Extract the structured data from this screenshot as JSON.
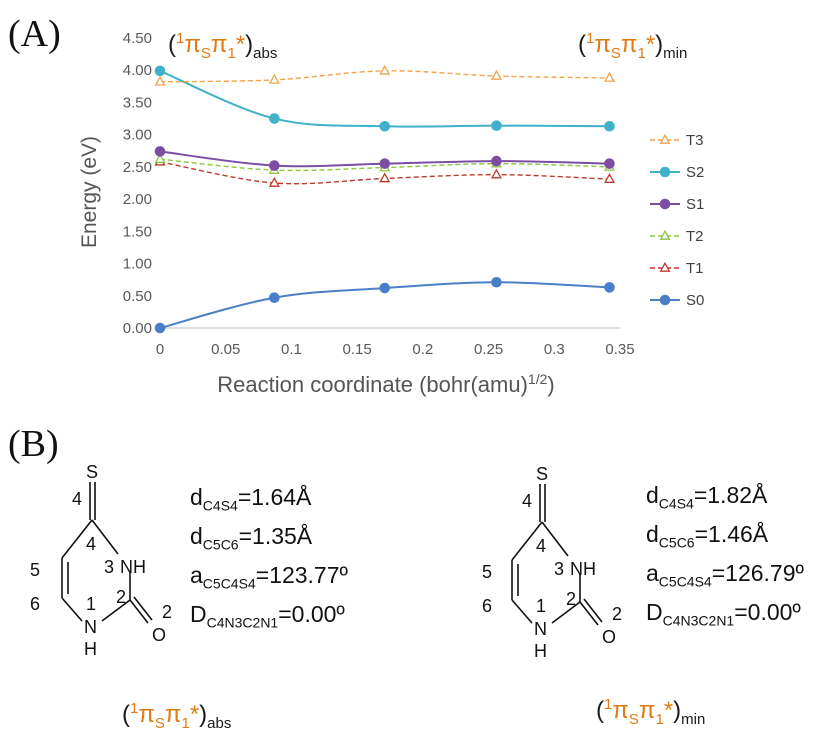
{
  "panel_a_label": "(A)",
  "panel_b_label": "(B)",
  "chart_data": {
    "type": "line",
    "title": "",
    "xlabel": "Reaction coordinate (bohr(amu)",
    "xlabel_sup": "1/2",
    "xlabel_tail": ")",
    "ylabel": "Energy (eV)",
    "xlim": [
      0,
      0.35
    ],
    "ylim": [
      0,
      4.5
    ],
    "x_ticks": [
      "0",
      "0.05",
      "0.1",
      "0.15",
      "0.2",
      "0.25",
      "0.3",
      "0.35"
    ],
    "y_ticks": [
      "0.00",
      "0.50",
      "1.00",
      "1.50",
      "2.00",
      "2.50",
      "3.00",
      "3.50",
      "4.00",
      "4.50"
    ],
    "grid": false,
    "legend_position": "right",
    "x": [
      0,
      0.087,
      0.171,
      0.256,
      0.342
    ],
    "series": [
      {
        "name": "T3",
        "values": [
          3.82,
          3.85,
          3.99,
          3.91,
          3.88
        ],
        "color": "#f4a24a",
        "marker": "triangle-open",
        "dashed": true
      },
      {
        "name": "S2",
        "values": [
          3.99,
          3.25,
          3.13,
          3.14,
          3.13
        ],
        "color": "#3fb2c9",
        "marker": "circle",
        "dashed": false
      },
      {
        "name": "S1",
        "values": [
          2.74,
          2.52,
          2.55,
          2.59,
          2.55
        ],
        "color": "#7b4ea3",
        "marker": "circle",
        "dashed": false
      },
      {
        "name": "T2",
        "values": [
          2.62,
          2.45,
          2.49,
          2.55,
          2.5
        ],
        "color": "#8dc63f",
        "marker": "triangle-open",
        "dashed": true
      },
      {
        "name": "T1",
        "values": [
          2.58,
          2.25,
          2.32,
          2.38,
          2.31
        ],
        "color": "#c0392b",
        "marker": "triangle-open",
        "dashed": true
      },
      {
        "name": "S0",
        "values": [
          0.0,
          0.47,
          0.62,
          0.71,
          0.63
        ],
        "color": "#4a7fc8",
        "marker": "circle",
        "dashed": false
      }
    ]
  },
  "annotations": {
    "abs": {
      "open": "(",
      "sup": "1",
      "pi": "π",
      "sub_s": "S",
      "pi2": "π",
      "sub_1": "1",
      "star": "*",
      "close": ")",
      "tail": "abs"
    },
    "min": {
      "open": "(",
      "sup": "1",
      "pi": "π",
      "sub_s": "S",
      "pi2": "π",
      "sub_1": "1",
      "star": "*",
      "close": ")",
      "tail": "min"
    }
  },
  "molecule": {
    "S": "S",
    "NH_top": "NH",
    "O": "O",
    "N_bottom": "N",
    "H_bottom": "H",
    "num_4a": "4",
    "num_4b": "4",
    "num_3": "3",
    "num_5": "5",
    "num_2a": "2",
    "num_2b": "2",
    "num_6": "6",
    "num_1": "1"
  },
  "geometry_abs": {
    "d1_main": "d",
    "d1_sub": "C4S4",
    "d1_val": "=1.64Å",
    "d2_main": "d",
    "d2_sub": "C5C6",
    "d2_val": "=1.35Å",
    "a_main": "a",
    "a_sub": "C5C4S4",
    "a_val": "=123.77º",
    "D_main": "D",
    "D_sub": "C4N3C2N1",
    "D_val": "=0.00º"
  },
  "geometry_min": {
    "d1_main": "d",
    "d1_sub": "C4S4",
    "d1_val": "=1.82Å",
    "d2_main": "d",
    "d2_sub": "C5C6",
    "d2_val": "=1.46Å",
    "a_main": "a",
    "a_sub": "C5C4S4",
    "a_val": "=126.79º",
    "D_main": "D",
    "D_sub": "C4N3C2N1",
    "D_val": "=0.00º"
  }
}
